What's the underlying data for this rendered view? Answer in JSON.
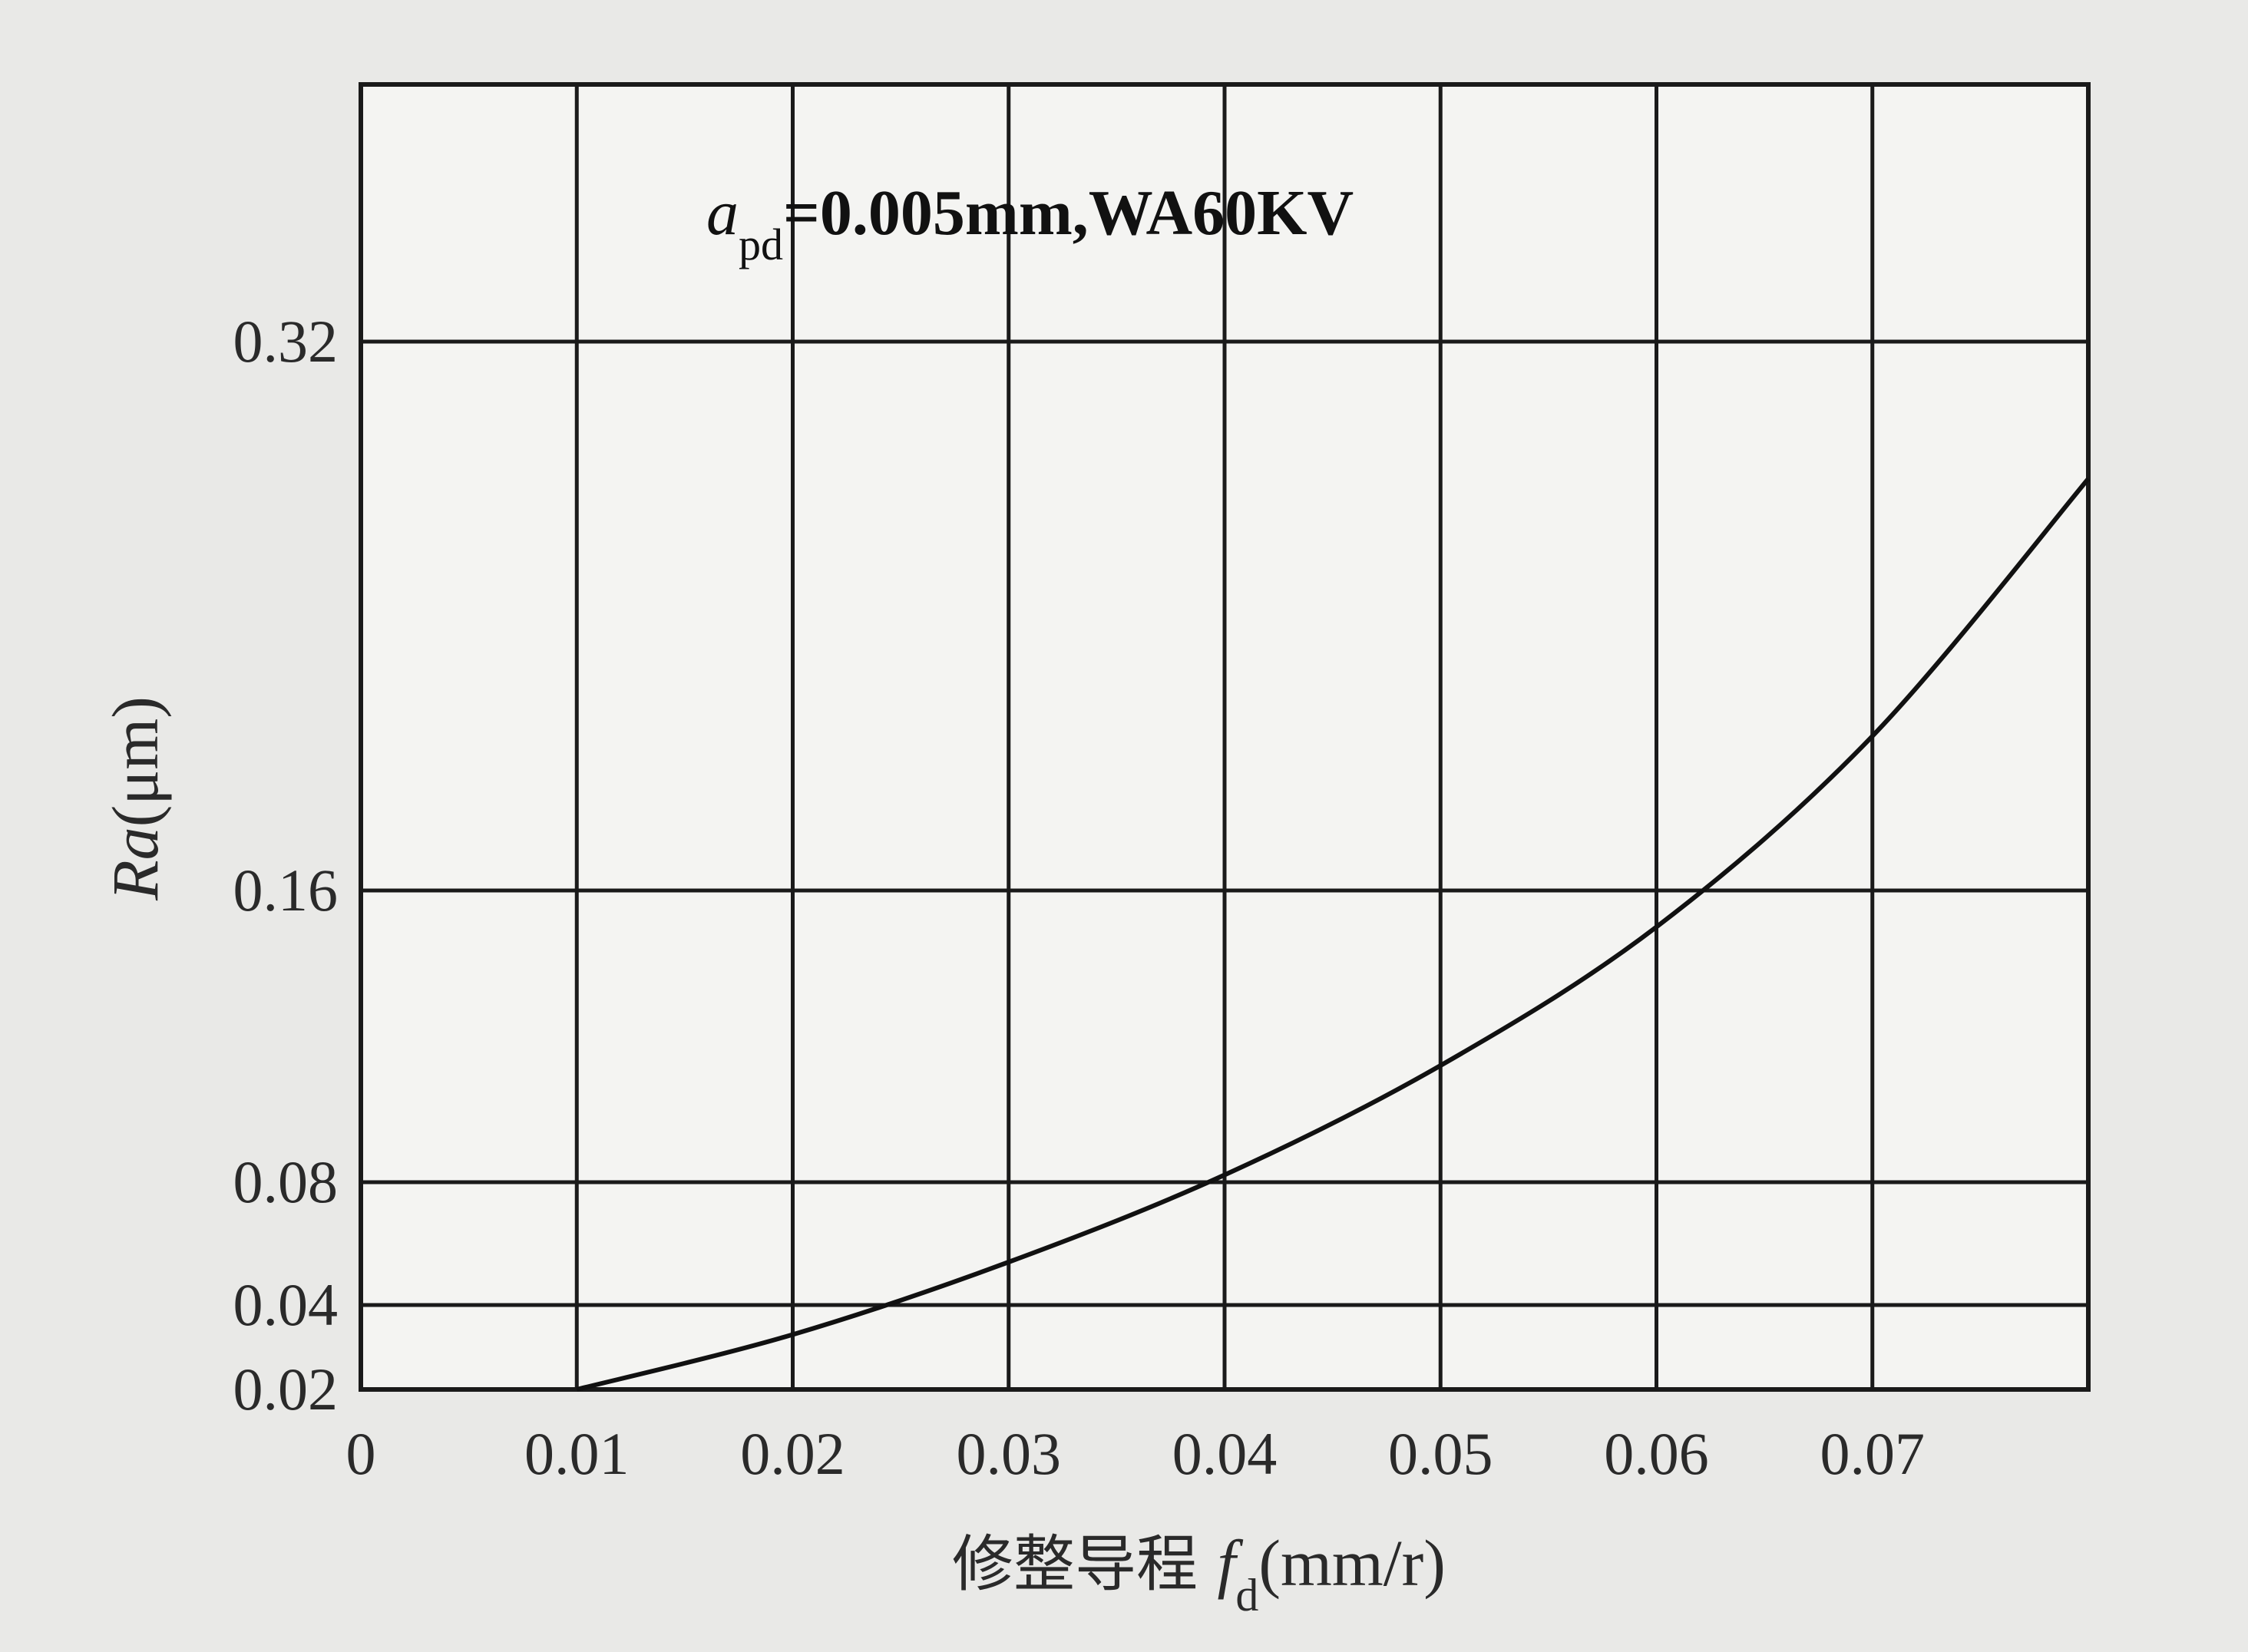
{
  "chart_data": {
    "type": "line",
    "title": "",
    "annotation": {
      "symbol": "a",
      "subscript": "pd",
      "rest": "=0.005mm,WA60KV"
    },
    "xlabel": {
      "prefix": "修整导程 ",
      "symbol": "f",
      "subscript": "d",
      "unit": "(mm/r)"
    },
    "ylabel": {
      "symbol": "Ra",
      "unit": "(μm)"
    },
    "x_ticks": [
      "0",
      "0.01",
      "0.02",
      "0.03",
      "0.04",
      "0.05",
      "0.06",
      "0.07"
    ],
    "y_ticks": [
      "0.02",
      "0.04",
      "0.08",
      "0.16",
      "0.32"
    ],
    "y_tick_values": [
      0.02,
      0.04,
      0.08,
      0.16,
      0.32
    ],
    "xlim": [
      0,
      0.08
    ],
    "y_scale": "nonlinear (0.02, 0.04, 0.08, 0.16, 0.32 gridlines)",
    "grid": true,
    "series": [
      {
        "x": [
          0.01,
          0.02,
          0.03,
          0.04,
          0.05,
          0.06,
          0.07,
          0.08
        ],
        "y": [
          0.02,
          0.033,
          0.054,
          0.082,
          0.112,
          0.15,
          0.205,
          0.28
        ]
      }
    ]
  }
}
